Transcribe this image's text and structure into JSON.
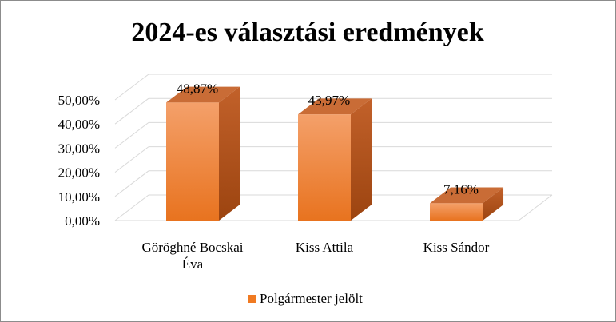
{
  "chart_data": {
    "type": "bar",
    "title": "2024-es választási eredmények",
    "categories": [
      [
        "Göröghné Bocskai",
        "Éva"
      ],
      [
        "Kiss Attila"
      ],
      [
        "Kiss Sándor"
      ]
    ],
    "series": [
      {
        "name": "Polgármester jelölt",
        "values": [
          48.87,
          43.97,
          7.16
        ],
        "data_labels": [
          "48,87%",
          "43,97%",
          "7,16%"
        ]
      }
    ],
    "y_ticks": [
      "0,00%",
      "10,00%",
      "20,00%",
      "30,00%",
      "40,00%",
      "50,00%"
    ],
    "ylim": [
      0,
      50
    ],
    "legend_position": "bottom",
    "grid": true,
    "three_d": true
  },
  "colors": {
    "front_top": "#f4a06a",
    "front_bottom": "#e8731f",
    "side_top": "#c2612a",
    "side_bottom": "#9c4410",
    "top_face": "#c96c36",
    "grid": "#d9d9d9",
    "legend_swatch": "#f07a22"
  }
}
